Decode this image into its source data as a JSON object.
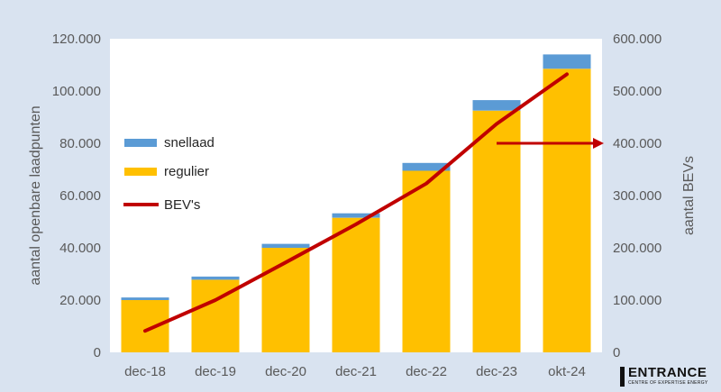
{
  "chart_data": {
    "type": "bar",
    "stacked": true,
    "categories": [
      "dec-18",
      "dec-19",
      "dec-20",
      "dec-21",
      "dec-22",
      "dec-23",
      "okt-24"
    ],
    "series": [
      {
        "name": "regulier",
        "type": "bar",
        "axis": "left",
        "color": "#ffc000",
        "values": [
          20000,
          27800,
          40000,
          51500,
          69500,
          92500,
          108500
        ]
      },
      {
        "name": "snellaad",
        "type": "bar",
        "axis": "left",
        "color": "#5b9bd5",
        "values": [
          1000,
          1200,
          1500,
          1700,
          3000,
          4000,
          5500
        ]
      },
      {
        "name": "BEV's",
        "type": "line",
        "axis": "right",
        "color": "#c00000",
        "values": [
          41000,
          100000,
          172000,
          245000,
          323000,
          437000,
          532000
        ]
      }
    ],
    "y_left": {
      "label": "aantal openbare laadpunten",
      "lim": [
        0,
        120000
      ],
      "ticks": [
        "0",
        "20.000",
        "40.000",
        "60.000",
        "80.000",
        "100.000",
        "120.000"
      ]
    },
    "y_right": {
      "label": "aantal BEVs",
      "lim": [
        0,
        600000
      ],
      "ticks": [
        "0",
        "100.000",
        "200.000",
        "300.000",
        "400.000",
        "500.000",
        "600.000"
      ]
    },
    "grid": false,
    "legend": {
      "position": "left",
      "order": [
        "snellaad",
        "regulier",
        "BEV's"
      ]
    },
    "annotations": [
      {
        "type": "arrow",
        "direction": "right",
        "color": "#c00000",
        "from_category": "dec-23",
        "to_axis": "right",
        "at_right_value": 400000
      }
    ]
  },
  "logo": {
    "name": "ENTRANCE",
    "tagline": "CENTRE OF EXPERTISE ENERGY"
  }
}
